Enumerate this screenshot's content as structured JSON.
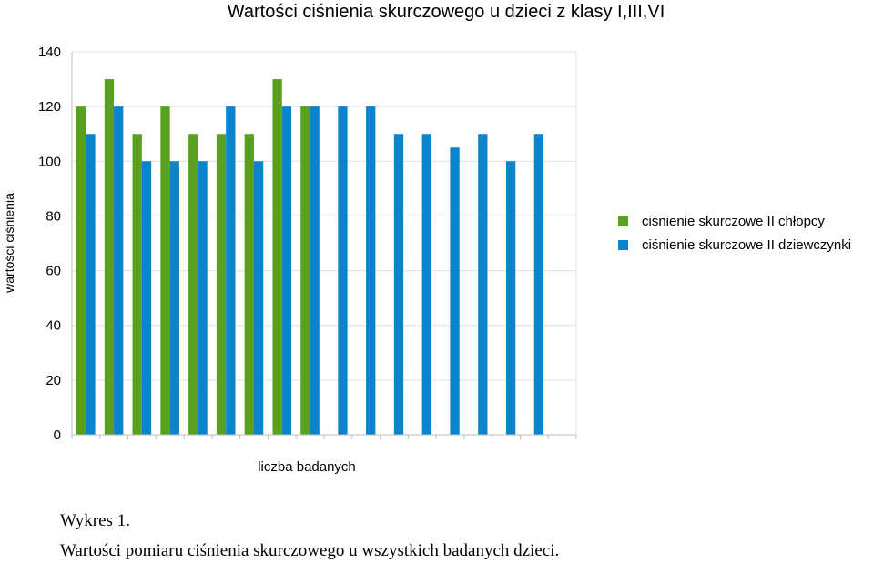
{
  "colors": {
    "boys": "#58a01e",
    "girls": "#0a84cd",
    "grid": "#e0e0e0",
    "axis": "#bdbdbd"
  },
  "chart_data": {
    "type": "bar",
    "title": "Wartości ciśnienia skurczowego u dzieci z klasy I,III,VI",
    "ylabel": "wartości ciśnienia",
    "xlabel": "liczba badanych",
    "ylim": [
      0,
      140
    ],
    "yticks": [
      0,
      20,
      40,
      60,
      80,
      100,
      120,
      140
    ],
    "grid": true,
    "legend_position": "right",
    "categories": [
      "",
      "",
      "",
      "",
      "",
      "",
      "",
      "",
      "",
      "",
      "",
      "",
      "",
      "",
      "",
      "",
      "",
      ""
    ],
    "series": [
      {
        "name": "ciśnienie skurczowe II chłopcy",
        "color": "#58a01e",
        "values": [
          120,
          130,
          110,
          120,
          110,
          110,
          110,
          130,
          120,
          null,
          null,
          null,
          null,
          null,
          null,
          null,
          null,
          null
        ]
      },
      {
        "name": "ciśnienie skurczowe II dziewczynki",
        "color": "#0a84cd",
        "values": [
          110,
          120,
          100,
          100,
          100,
          120,
          100,
          120,
          120,
          120,
          120,
          110,
          110,
          105,
          110,
          100,
          110,
          null
        ]
      }
    ]
  },
  "captions": {
    "figure_number": "Wykres 1.",
    "description": "Wartości pomiaru ciśnienia skurczowego u wszystkich badanych dzieci."
  }
}
